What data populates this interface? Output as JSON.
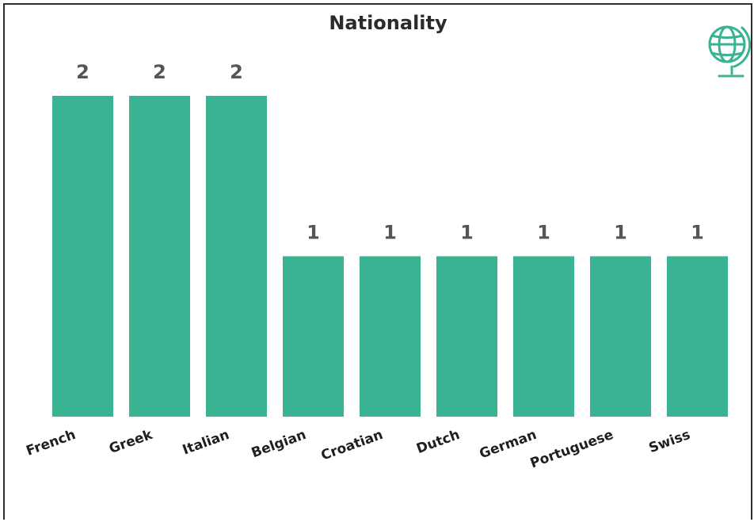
{
  "icons": {
    "globe": "globe-icon"
  },
  "colors": {
    "bar": "#3AB393",
    "icon": "#3AB393",
    "label": "#555555"
  },
  "chart_data": {
    "type": "bar",
    "title": "Nationality",
    "xlabel": "",
    "ylabel": "",
    "categories": [
      "French",
      "Greek",
      "Italian",
      "Belgian",
      "Croatian",
      "Dutch",
      "German",
      "Portuguese",
      "Swiss"
    ],
    "values": [
      2,
      2,
      2,
      1,
      1,
      1,
      1,
      1,
      1
    ],
    "ylim": [
      0,
      2
    ],
    "grid": false,
    "legend": "none"
  }
}
